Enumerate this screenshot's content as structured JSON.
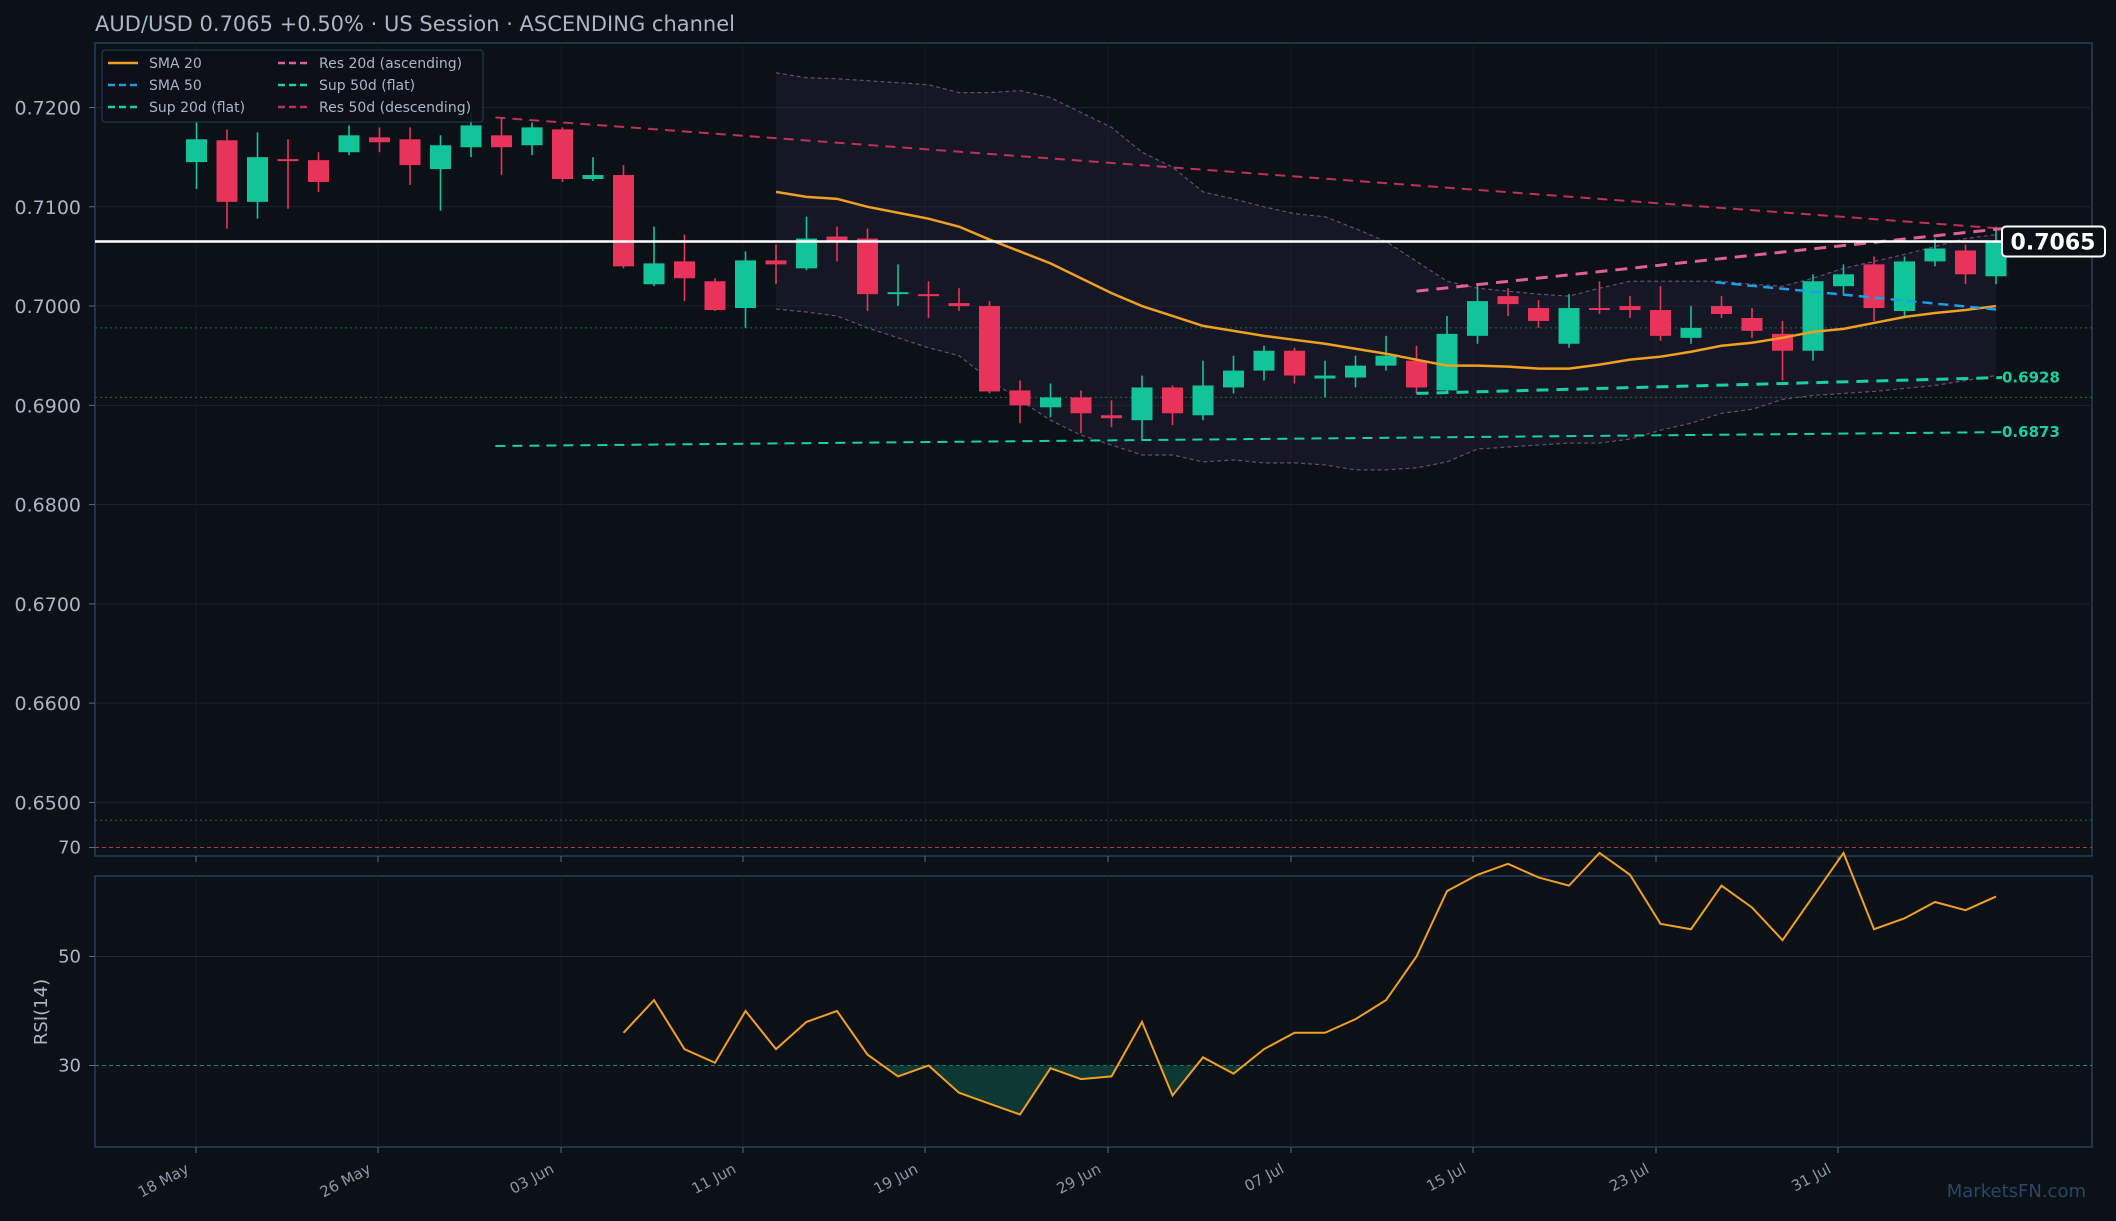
{
  "header": {
    "title": "AUD/USD   0.7065   +0.50%  ·  US Session  ·  ASCENDING channel"
  },
  "watermark": "MarketsFN.com",
  "colors": {
    "background": "#0c1017",
    "panel_border": "#24405c",
    "bull": "#12c49a",
    "bear": "#e8345a",
    "sma20": "#f0a020",
    "sma50": "#1a9fe8",
    "res20": "#e0609a",
    "res50": "#c0305a",
    "sup": "#18d0a0",
    "rsi": "#f0a020",
    "last_price": "#ffffff"
  },
  "chart_data": [
    {
      "type": "candlestick",
      "ylim": [
        0.6445,
        0.7265
      ],
      "y_ticks": [
        "0.6500",
        "0.6600",
        "0.6700",
        "0.6800",
        "0.6900",
        "0.7000",
        "0.7100",
        "0.7200"
      ],
      "x_ticks": [
        "18 May",
        "26 May",
        "03 Jun",
        "11 Jun",
        "19 Jun",
        "29 Jun",
        "07 Jul",
        "15 Jul",
        "23 Jul",
        "31 Jul"
      ],
      "grid": true,
      "legend": {
        "position": "top-left",
        "entries": [
          {
            "label": "SMA 20",
            "key": "sma20",
            "dash": "solid"
          },
          {
            "label": "SMA 50",
            "key": "sma50",
            "dash": "dashed"
          },
          {
            "label": "Sup 20d (flat)",
            "key": "sup",
            "dash": "dashed"
          },
          {
            "label": "Res 20d (ascending)",
            "key": "res20",
            "dash": "dashed"
          },
          {
            "label": "Sup 50d (flat)",
            "key": "sup",
            "dash": "dashed"
          },
          {
            "label": "Res 50d (descending)",
            "key": "res50",
            "dash": "dashed"
          }
        ]
      },
      "candles": [
        {
          "o": 0.7145,
          "h": 0.7185,
          "l": 0.7118,
          "c": 0.7168
        },
        {
          "o": 0.7167,
          "h": 0.7178,
          "l": 0.7078,
          "c": 0.7105
        },
        {
          "o": 0.7105,
          "h": 0.7175,
          "l": 0.7088,
          "c": 0.715
        },
        {
          "o": 0.7148,
          "h": 0.7168,
          "l": 0.7098,
          "c": 0.7147
        },
        {
          "o": 0.7147,
          "h": 0.7155,
          "l": 0.7115,
          "c": 0.7125
        },
        {
          "o": 0.7155,
          "h": 0.7182,
          "l": 0.7152,
          "c": 0.7172
        },
        {
          "o": 0.717,
          "h": 0.718,
          "l": 0.7155,
          "c": 0.7165
        },
        {
          "o": 0.7168,
          "h": 0.718,
          "l": 0.7122,
          "c": 0.7142
        },
        {
          "o": 0.7138,
          "h": 0.7172,
          "l": 0.7096,
          "c": 0.7162
        },
        {
          "o": 0.716,
          "h": 0.7195,
          "l": 0.715,
          "c": 0.7182
        },
        {
          "o": 0.7172,
          "h": 0.719,
          "l": 0.7132,
          "c": 0.716
        },
        {
          "o": 0.7162,
          "h": 0.7185,
          "l": 0.7152,
          "c": 0.718
        },
        {
          "o": 0.7178,
          "h": 0.718,
          "l": 0.7125,
          "c": 0.7128
        },
        {
          "o": 0.7128,
          "h": 0.715,
          "l": 0.7126,
          "c": 0.7132
        },
        {
          "o": 0.7132,
          "h": 0.7142,
          "l": 0.7038,
          "c": 0.704
        },
        {
          "o": 0.7022,
          "h": 0.708,
          "l": 0.702,
          "c": 0.7043
        },
        {
          "o": 0.7045,
          "h": 0.7072,
          "l": 0.7005,
          "c": 0.7028
        },
        {
          "o": 0.7025,
          "h": 0.7028,
          "l": 0.6995,
          "c": 0.6996
        },
        {
          "o": 0.6998,
          "h": 0.7055,
          "l": 0.6978,
          "c": 0.7046
        },
        {
          "o": 0.7046,
          "h": 0.7062,
          "l": 0.7022,
          "c": 0.7042
        },
        {
          "o": 0.7038,
          "h": 0.709,
          "l": 0.7036,
          "c": 0.7068
        },
        {
          "o": 0.707,
          "h": 0.708,
          "l": 0.7045,
          "c": 0.7066
        },
        {
          "o": 0.7068,
          "h": 0.7078,
          "l": 0.6995,
          "c": 0.7012
        },
        {
          "o": 0.7013,
          "h": 0.7042,
          "l": 0.7,
          "c": 0.7014
        },
        {
          "o": 0.7012,
          "h": 0.7025,
          "l": 0.6988,
          "c": 0.701
        },
        {
          "o": 0.7003,
          "h": 0.7018,
          "l": 0.6995,
          "c": 0.7
        },
        {
          "o": 0.7,
          "h": 0.7005,
          "l": 0.6912,
          "c": 0.6914
        },
        {
          "o": 0.6915,
          "h": 0.6925,
          "l": 0.6882,
          "c": 0.69
        },
        {
          "o": 0.6898,
          "h": 0.6922,
          "l": 0.6888,
          "c": 0.6908
        },
        {
          "o": 0.6908,
          "h": 0.6915,
          "l": 0.6872,
          "c": 0.6892
        },
        {
          "o": 0.689,
          "h": 0.6905,
          "l": 0.6878,
          "c": 0.6887
        },
        {
          "o": 0.6885,
          "h": 0.693,
          "l": 0.6865,
          "c": 0.6918
        },
        {
          "o": 0.6918,
          "h": 0.692,
          "l": 0.688,
          "c": 0.6892
        },
        {
          "o": 0.689,
          "h": 0.6945,
          "l": 0.6885,
          "c": 0.692
        },
        {
          "o": 0.6918,
          "h": 0.695,
          "l": 0.6912,
          "c": 0.6935
        },
        {
          "o": 0.6935,
          "h": 0.696,
          "l": 0.6925,
          "c": 0.6955
        },
        {
          "o": 0.6955,
          "h": 0.6958,
          "l": 0.6922,
          "c": 0.693
        },
        {
          "o": 0.6927,
          "h": 0.6945,
          "l": 0.6908,
          "c": 0.693
        },
        {
          "o": 0.6928,
          "h": 0.695,
          "l": 0.6918,
          "c": 0.694
        },
        {
          "o": 0.694,
          "h": 0.697,
          "l": 0.6935,
          "c": 0.695
        },
        {
          "o": 0.6945,
          "h": 0.696,
          "l": 0.6912,
          "c": 0.6918
        },
        {
          "o": 0.6915,
          "h": 0.699,
          "l": 0.6912,
          "c": 0.6972
        },
        {
          "o": 0.697,
          "h": 0.702,
          "l": 0.6962,
          "c": 0.7005
        },
        {
          "o": 0.701,
          "h": 0.7018,
          "l": 0.699,
          "c": 0.7002
        },
        {
          "o": 0.6998,
          "h": 0.7006,
          "l": 0.6978,
          "c": 0.6985
        },
        {
          "o": 0.6962,
          "h": 0.7012,
          "l": 0.6958,
          "c": 0.6998
        },
        {
          "o": 0.6998,
          "h": 0.7025,
          "l": 0.6992,
          "c": 0.6996
        },
        {
          "o": 0.7,
          "h": 0.701,
          "l": 0.6988,
          "c": 0.6996
        },
        {
          "o": 0.6996,
          "h": 0.702,
          "l": 0.6965,
          "c": 0.697
        },
        {
          "o": 0.6968,
          "h": 0.7,
          "l": 0.6962,
          "c": 0.6978
        },
        {
          "o": 0.7,
          "h": 0.701,
          "l": 0.6988,
          "c": 0.6992
        },
        {
          "o": 0.6988,
          "h": 0.6998,
          "l": 0.6968,
          "c": 0.6975
        },
        {
          "o": 0.6972,
          "h": 0.6985,
          "l": 0.6925,
          "c": 0.6955
        },
        {
          "o": 0.6955,
          "h": 0.7032,
          "l": 0.6945,
          "c": 0.7025
        },
        {
          "o": 0.702,
          "h": 0.7042,
          "l": 0.7012,
          "c": 0.7032
        },
        {
          "o": 0.7042,
          "h": 0.705,
          "l": 0.6985,
          "c": 0.6998
        },
        {
          "o": 0.6995,
          "h": 0.705,
          "l": 0.699,
          "c": 0.7045
        },
        {
          "o": 0.7045,
          "h": 0.7068,
          "l": 0.704,
          "c": 0.7058
        },
        {
          "o": 0.7056,
          "h": 0.7062,
          "l": 0.7022,
          "c": 0.7032
        },
        {
          "o": 0.703,
          "h": 0.708,
          "l": 0.7022,
          "c": 0.7065
        }
      ],
      "sma20": [
        {
          "i": 19,
          "v": 0.7115
        },
        {
          "i": 20,
          "v": 0.711
        },
        {
          "i": 21,
          "v": 0.7108
        },
        {
          "i": 22,
          "v": 0.71
        },
        {
          "i": 23,
          "v": 0.7094
        },
        {
          "i": 24,
          "v": 0.7088
        },
        {
          "i": 25,
          "v": 0.708
        },
        {
          "i": 26,
          "v": 0.7067
        },
        {
          "i": 27,
          "v": 0.7055
        },
        {
          "i": 28,
          "v": 0.7043
        },
        {
          "i": 29,
          "v": 0.7028
        },
        {
          "i": 30,
          "v": 0.7013
        },
        {
          "i": 31,
          "v": 0.7
        },
        {
          "i": 32,
          "v": 0.699
        },
        {
          "i": 33,
          "v": 0.698
        },
        {
          "i": 34,
          "v": 0.6975
        },
        {
          "i": 35,
          "v": 0.697
        },
        {
          "i": 36,
          "v": 0.6966
        },
        {
          "i": 37,
          "v": 0.6962
        },
        {
          "i": 38,
          "v": 0.6957
        },
        {
          "i": 39,
          "v": 0.6952
        },
        {
          "i": 40,
          "v": 0.6946
        },
        {
          "i": 41,
          "v": 0.694
        },
        {
          "i": 42,
          "v": 0.694
        },
        {
          "i": 43,
          "v": 0.6939
        },
        {
          "i": 44,
          "v": 0.6937
        },
        {
          "i": 45,
          "v": 0.6937
        },
        {
          "i": 46,
          "v": 0.6941
        },
        {
          "i": 47,
          "v": 0.6946
        },
        {
          "i": 48,
          "v": 0.6949
        },
        {
          "i": 49,
          "v": 0.6954
        },
        {
          "i": 50,
          "v": 0.696
        },
        {
          "i": 51,
          "v": 0.6963
        },
        {
          "i": 52,
          "v": 0.6968
        },
        {
          "i": 53,
          "v": 0.6974
        },
        {
          "i": 54,
          "v": 0.6977
        },
        {
          "i": 55,
          "v": 0.6983
        },
        {
          "i": 56,
          "v": 0.6989
        },
        {
          "i": 57,
          "v": 0.6993
        },
        {
          "i": 58,
          "v": 0.6996
        },
        {
          "i": 59,
          "v": 0.7
        }
      ],
      "band_upper": [
        {
          "i": 19,
          "v": 0.7235
        },
        {
          "i": 20,
          "v": 0.723
        },
        {
          "i": 21,
          "v": 0.7229
        },
        {
          "i": 22,
          "v": 0.7227
        },
        {
          "i": 23,
          "v": 0.7225
        },
        {
          "i": 24,
          "v": 0.7223
        },
        {
          "i": 25,
          "v": 0.7215
        },
        {
          "i": 26,
          "v": 0.7215
        },
        {
          "i": 27,
          "v": 0.7217
        },
        {
          "i": 28,
          "v": 0.721
        },
        {
          "i": 29,
          "v": 0.7195
        },
        {
          "i": 30,
          "v": 0.718
        },
        {
          "i": 31,
          "v": 0.7155
        },
        {
          "i": 32,
          "v": 0.714
        },
        {
          "i": 33,
          "v": 0.7115
        },
        {
          "i": 34,
          "v": 0.7108
        },
        {
          "i": 35,
          "v": 0.71
        },
        {
          "i": 36,
          "v": 0.7093
        },
        {
          "i": 37,
          "v": 0.709
        },
        {
          "i": 38,
          "v": 0.7078
        },
        {
          "i": 39,
          "v": 0.7065
        },
        {
          "i": 40,
          "v": 0.7045
        },
        {
          "i": 41,
          "v": 0.7025
        },
        {
          "i": 42,
          "v": 0.7018
        },
        {
          "i": 43,
          "v": 0.7015
        },
        {
          "i": 44,
          "v": 0.7012
        },
        {
          "i": 45,
          "v": 0.701
        },
        {
          "i": 46,
          "v": 0.7018
        },
        {
          "i": 47,
          "v": 0.7025
        },
        {
          "i": 48,
          "v": 0.7025
        },
        {
          "i": 49,
          "v": 0.7025
        },
        {
          "i": 50,
          "v": 0.7025
        },
        {
          "i": 51,
          "v": 0.7022
        },
        {
          "i": 52,
          "v": 0.702
        },
        {
          "i": 53,
          "v": 0.7028
        },
        {
          "i": 54,
          "v": 0.7038
        },
        {
          "i": 55,
          "v": 0.7045
        },
        {
          "i": 56,
          "v": 0.7052
        },
        {
          "i": 57,
          "v": 0.706
        },
        {
          "i": 58,
          "v": 0.7068
        },
        {
          "i": 59,
          "v": 0.7072
        }
      ],
      "band_lower": [
        {
          "i": 19,
          "v": 0.6997
        },
        {
          "i": 20,
          "v": 0.6994
        },
        {
          "i": 21,
          "v": 0.699
        },
        {
          "i": 22,
          "v": 0.6978
        },
        {
          "i": 23,
          "v": 0.6968
        },
        {
          "i": 24,
          "v": 0.6958
        },
        {
          "i": 25,
          "v": 0.695
        },
        {
          "i": 26,
          "v": 0.6926
        },
        {
          "i": 27,
          "v": 0.6905
        },
        {
          "i": 28,
          "v": 0.6885
        },
        {
          "i": 29,
          "v": 0.687
        },
        {
          "i": 30,
          "v": 0.686
        },
        {
          "i": 31,
          "v": 0.685
        },
        {
          "i": 32,
          "v": 0.685
        },
        {
          "i": 33,
          "v": 0.6843
        },
        {
          "i": 34,
          "v": 0.6845
        },
        {
          "i": 35,
          "v": 0.6842
        },
        {
          "i": 36,
          "v": 0.6842
        },
        {
          "i": 37,
          "v": 0.684
        },
        {
          "i": 38,
          "v": 0.6835
        },
        {
          "i": 39,
          "v": 0.6835
        },
        {
          "i": 40,
          "v": 0.6837
        },
        {
          "i": 41,
          "v": 0.6843
        },
        {
          "i": 42,
          "v": 0.6856
        },
        {
          "i": 43,
          "v": 0.6858
        },
        {
          "i": 44,
          "v": 0.686
        },
        {
          "i": 45,
          "v": 0.6862
        },
        {
          "i": 46,
          "v": 0.6862
        },
        {
          "i": 47,
          "v": 0.6866
        },
        {
          "i": 48,
          "v": 0.6875
        },
        {
          "i": 49,
          "v": 0.6882
        },
        {
          "i": 50,
          "v": 0.6892
        },
        {
          "i": 51,
          "v": 0.6896
        },
        {
          "i": 52,
          "v": 0.6906
        },
        {
          "i": 53,
          "v": 0.691
        },
        {
          "i": 54,
          "v": 0.6912
        },
        {
          "i": 55,
          "v": 0.6914
        },
        {
          "i": 56,
          "v": 0.6917
        },
        {
          "i": 57,
          "v": 0.692
        },
        {
          "i": 58,
          "v": 0.6925
        },
        {
          "i": 59,
          "v": 0.693
        }
      ],
      "lines": [
        {
          "name": "Res 50d (descending)",
          "key": "res50",
          "width": 2,
          "dash": "10 7",
          "from": {
            "i": 9.8,
            "v": 0.719
          },
          "to": {
            "i": 59.2,
            "v": 0.7078
          }
        },
        {
          "name": "Sup 50d (flat)",
          "key": "sup",
          "width": 2,
          "dash": "10 7",
          "from": {
            "i": 9.8,
            "v": 0.6859
          },
          "to": {
            "i": 59.2,
            "v": 0.6873
          }
        },
        {
          "name": "Res 20d (ascending)",
          "key": "res20",
          "width": 3,
          "dash": "12 8",
          "from": {
            "i": 40,
            "v": 0.7015
          },
          "to": {
            "i": 59.2,
            "v": 0.7078
          }
        },
        {
          "name": "Sup 20d (flat)",
          "key": "sup",
          "width": 3,
          "dash": "12 8",
          "from": {
            "i": 40,
            "v": 0.6912
          },
          "to": {
            "i": 59.2,
            "v": 0.6928
          }
        },
        {
          "name": "SMA 50",
          "key": "sma50",
          "width": 2.5,
          "dash": "10 6",
          "from": {
            "i": 49.8,
            "v": 0.7024
          },
          "to": {
            "i": 59.2,
            "v": 0.6996
          }
        }
      ],
      "hlines": [
        0.6978,
        0.6908,
        0.6482
      ],
      "level_labels": [
        {
          "value": 0.6928,
          "text": "0.6928"
        },
        {
          "value": 0.6873,
          "text": "0.6873"
        }
      ],
      "last_price": {
        "value": 0.7065,
        "text": "0.7065"
      }
    },
    {
      "type": "line",
      "ylabel": "RSI(14)",
      "ylim": [
        0,
        100
      ],
      "y_ticks": [
        "30",
        "50",
        "70"
      ],
      "overbought": 70,
      "oversold": 30,
      "x_ticks": [
        "18 May",
        "26 May",
        "03 Jun",
        "11 Jun",
        "19 Jun",
        "29 Jun",
        "07 Jul",
        "15 Jul",
        "23 Jul",
        "31 Jul"
      ],
      "start_index": 14,
      "values": [
        36,
        42,
        33,
        30.5,
        40,
        33,
        38,
        40,
        32,
        28,
        30,
        25,
        23,
        21,
        29.5,
        27.5,
        28,
        38,
        24.5,
        31.5,
        28.5,
        33,
        36,
        36,
        38.5,
        42,
        50,
        62,
        65,
        67,
        64.5,
        63,
        69,
        65,
        56,
        55,
        63,
        59,
        53,
        61,
        69,
        55,
        57,
        60,
        58.5,
        61
      ]
    }
  ]
}
